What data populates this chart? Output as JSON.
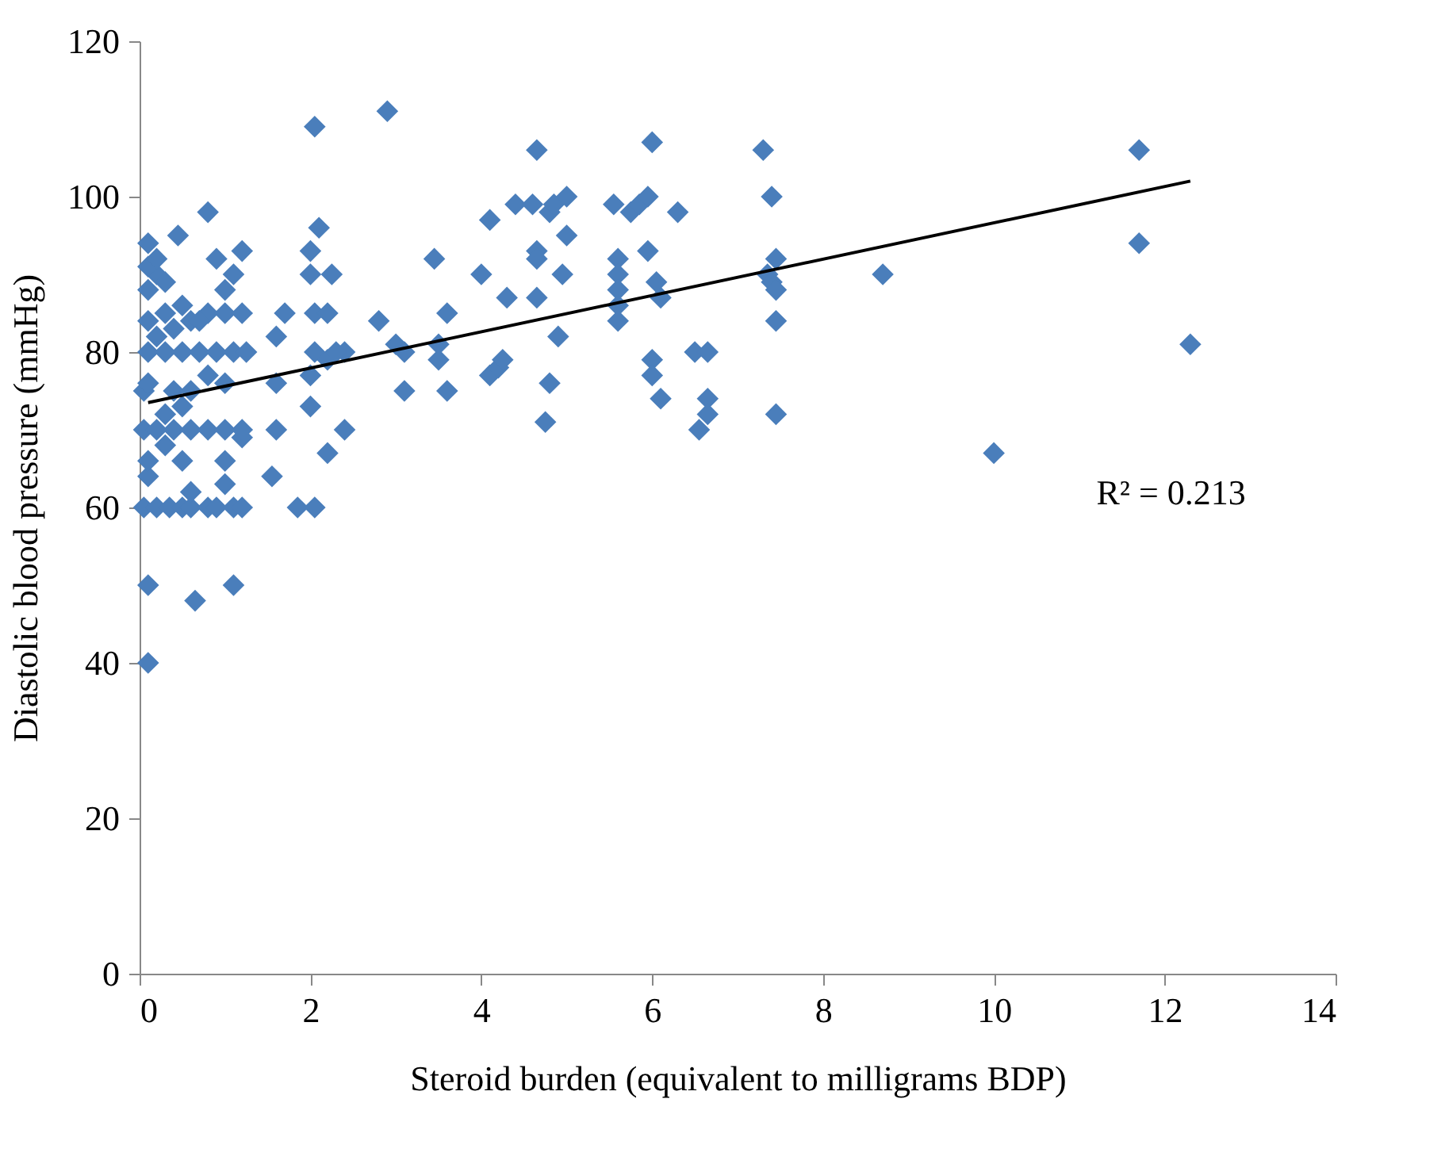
{
  "chart_data": {
    "type": "scatter",
    "xlabel": "Steroid burden (equivalent to milligrams  BDP)",
    "ylabel": "Diastolic blood pressure   (mmHg)",
    "xlim": [
      0,
      14
    ],
    "xticks": [
      0,
      2,
      4,
      6,
      8,
      10,
      12,
      14
    ],
    "ylim": [
      0,
      120
    ],
    "yticks": [
      0,
      20,
      40,
      60,
      80,
      100,
      120
    ],
    "grid": false,
    "annotations": [
      "R² = 0.213"
    ],
    "series": [
      {
        "color": "#4a7ebb",
        "marker": "diamond",
        "x": [
          0.1,
          0.1,
          0.65,
          1.1,
          0.05,
          0.2,
          0.35,
          0.5,
          0.6,
          0.8,
          0.9,
          1.1,
          1.2,
          0.1,
          0.1,
          0.5,
          0.6,
          0.3,
          1.0,
          1.0,
          1.2,
          0.05,
          0.2,
          0.4,
          0.6,
          0.8,
          1.0,
          1.2,
          0.3,
          0.5,
          0.05,
          0.1,
          0.4,
          0.6,
          1.0,
          0.8,
          0.1,
          0.3,
          0.5,
          0.7,
          0.9,
          1.1,
          1.25,
          0.2,
          0.4,
          0.6,
          0.1,
          0.3,
          0.5,
          0.8,
          1.0,
          1.2,
          0.7,
          0.1,
          0.2,
          0.1,
          0.3,
          0.1,
          0.45,
          0.9,
          1.1,
          1.2,
          1.0,
          0.8,
          0.2,
          1.6,
          1.6,
          1.55,
          1.6,
          1.7,
          1.85,
          2.05,
          2.0,
          2.0,
          2.05,
          2.05,
          2.0,
          2.0,
          2.1,
          2.05,
          2.2,
          2.2,
          2.25,
          2.2,
          2.4,
          2.4,
          2.3,
          2.8,
          2.9,
          3.0,
          3.1,
          3.1,
          3.45,
          3.5,
          3.5,
          3.6,
          3.6,
          4.0,
          4.1,
          4.1,
          4.2,
          4.25,
          4.3,
          4.4,
          4.6,
          4.65,
          4.65,
          4.65,
          4.65,
          4.75,
          4.8,
          4.8,
          4.85,
          4.9,
          4.95,
          5.0,
          5.0,
          5.55,
          5.6,
          5.6,
          5.6,
          5.6,
          5.6,
          5.75,
          5.85,
          5.95,
          5.95,
          6.0,
          6.0,
          6.0,
          6.05,
          6.1,
          6.1,
          6.3,
          6.5,
          6.55,
          6.65,
          6.65,
          6.65,
          7.3,
          7.35,
          7.4,
          7.45,
          7.4,
          7.45,
          7.45,
          7.45,
          8.7,
          10.0,
          11.7,
          11.7,
          12.3
        ],
        "values": [
          40,
          50,
          48,
          50,
          60,
          60,
          60,
          60,
          60,
          60,
          60,
          60,
          60,
          64,
          66,
          66,
          62,
          68,
          63,
          66,
          69,
          70,
          70,
          70,
          70,
          70,
          70,
          70,
          72,
          73,
          75,
          76,
          75,
          75,
          76,
          77,
          80,
          80,
          80,
          80,
          80,
          80,
          80,
          82,
          83,
          84,
          84,
          85,
          86,
          85,
          85,
          85,
          84,
          88,
          90,
          91,
          89,
          94,
          95,
          92,
          90,
          93,
          88,
          98,
          92,
          76,
          70,
          64,
          82,
          85,
          60,
          60,
          77,
          73,
          80,
          85,
          90,
          93,
          96,
          109,
          79,
          85,
          90,
          67,
          80,
          70,
          80,
          84,
          111,
          81,
          80,
          75,
          92,
          79,
          81,
          75,
          85,
          90,
          97,
          77,
          78,
          79,
          87,
          99,
          99,
          106,
          93,
          92,
          87,
          71,
          76,
          98,
          99,
          82,
          90,
          95,
          100,
          99,
          92,
          90,
          88,
          86,
          84,
          98,
          99,
          100,
          93,
          107,
          79,
          77,
          89,
          87,
          74,
          98,
          80,
          70,
          80,
          74,
          72,
          106,
          90,
          100,
          92,
          89,
          88,
          84,
          72,
          90,
          67,
          106,
          94,
          81
        ]
      },
      {
        "type": "line",
        "line_style": "solid",
        "color": "#000000",
        "x": [
          0.1,
          12.3
        ],
        "values": [
          73.5,
          102
        ]
      }
    ]
  }
}
